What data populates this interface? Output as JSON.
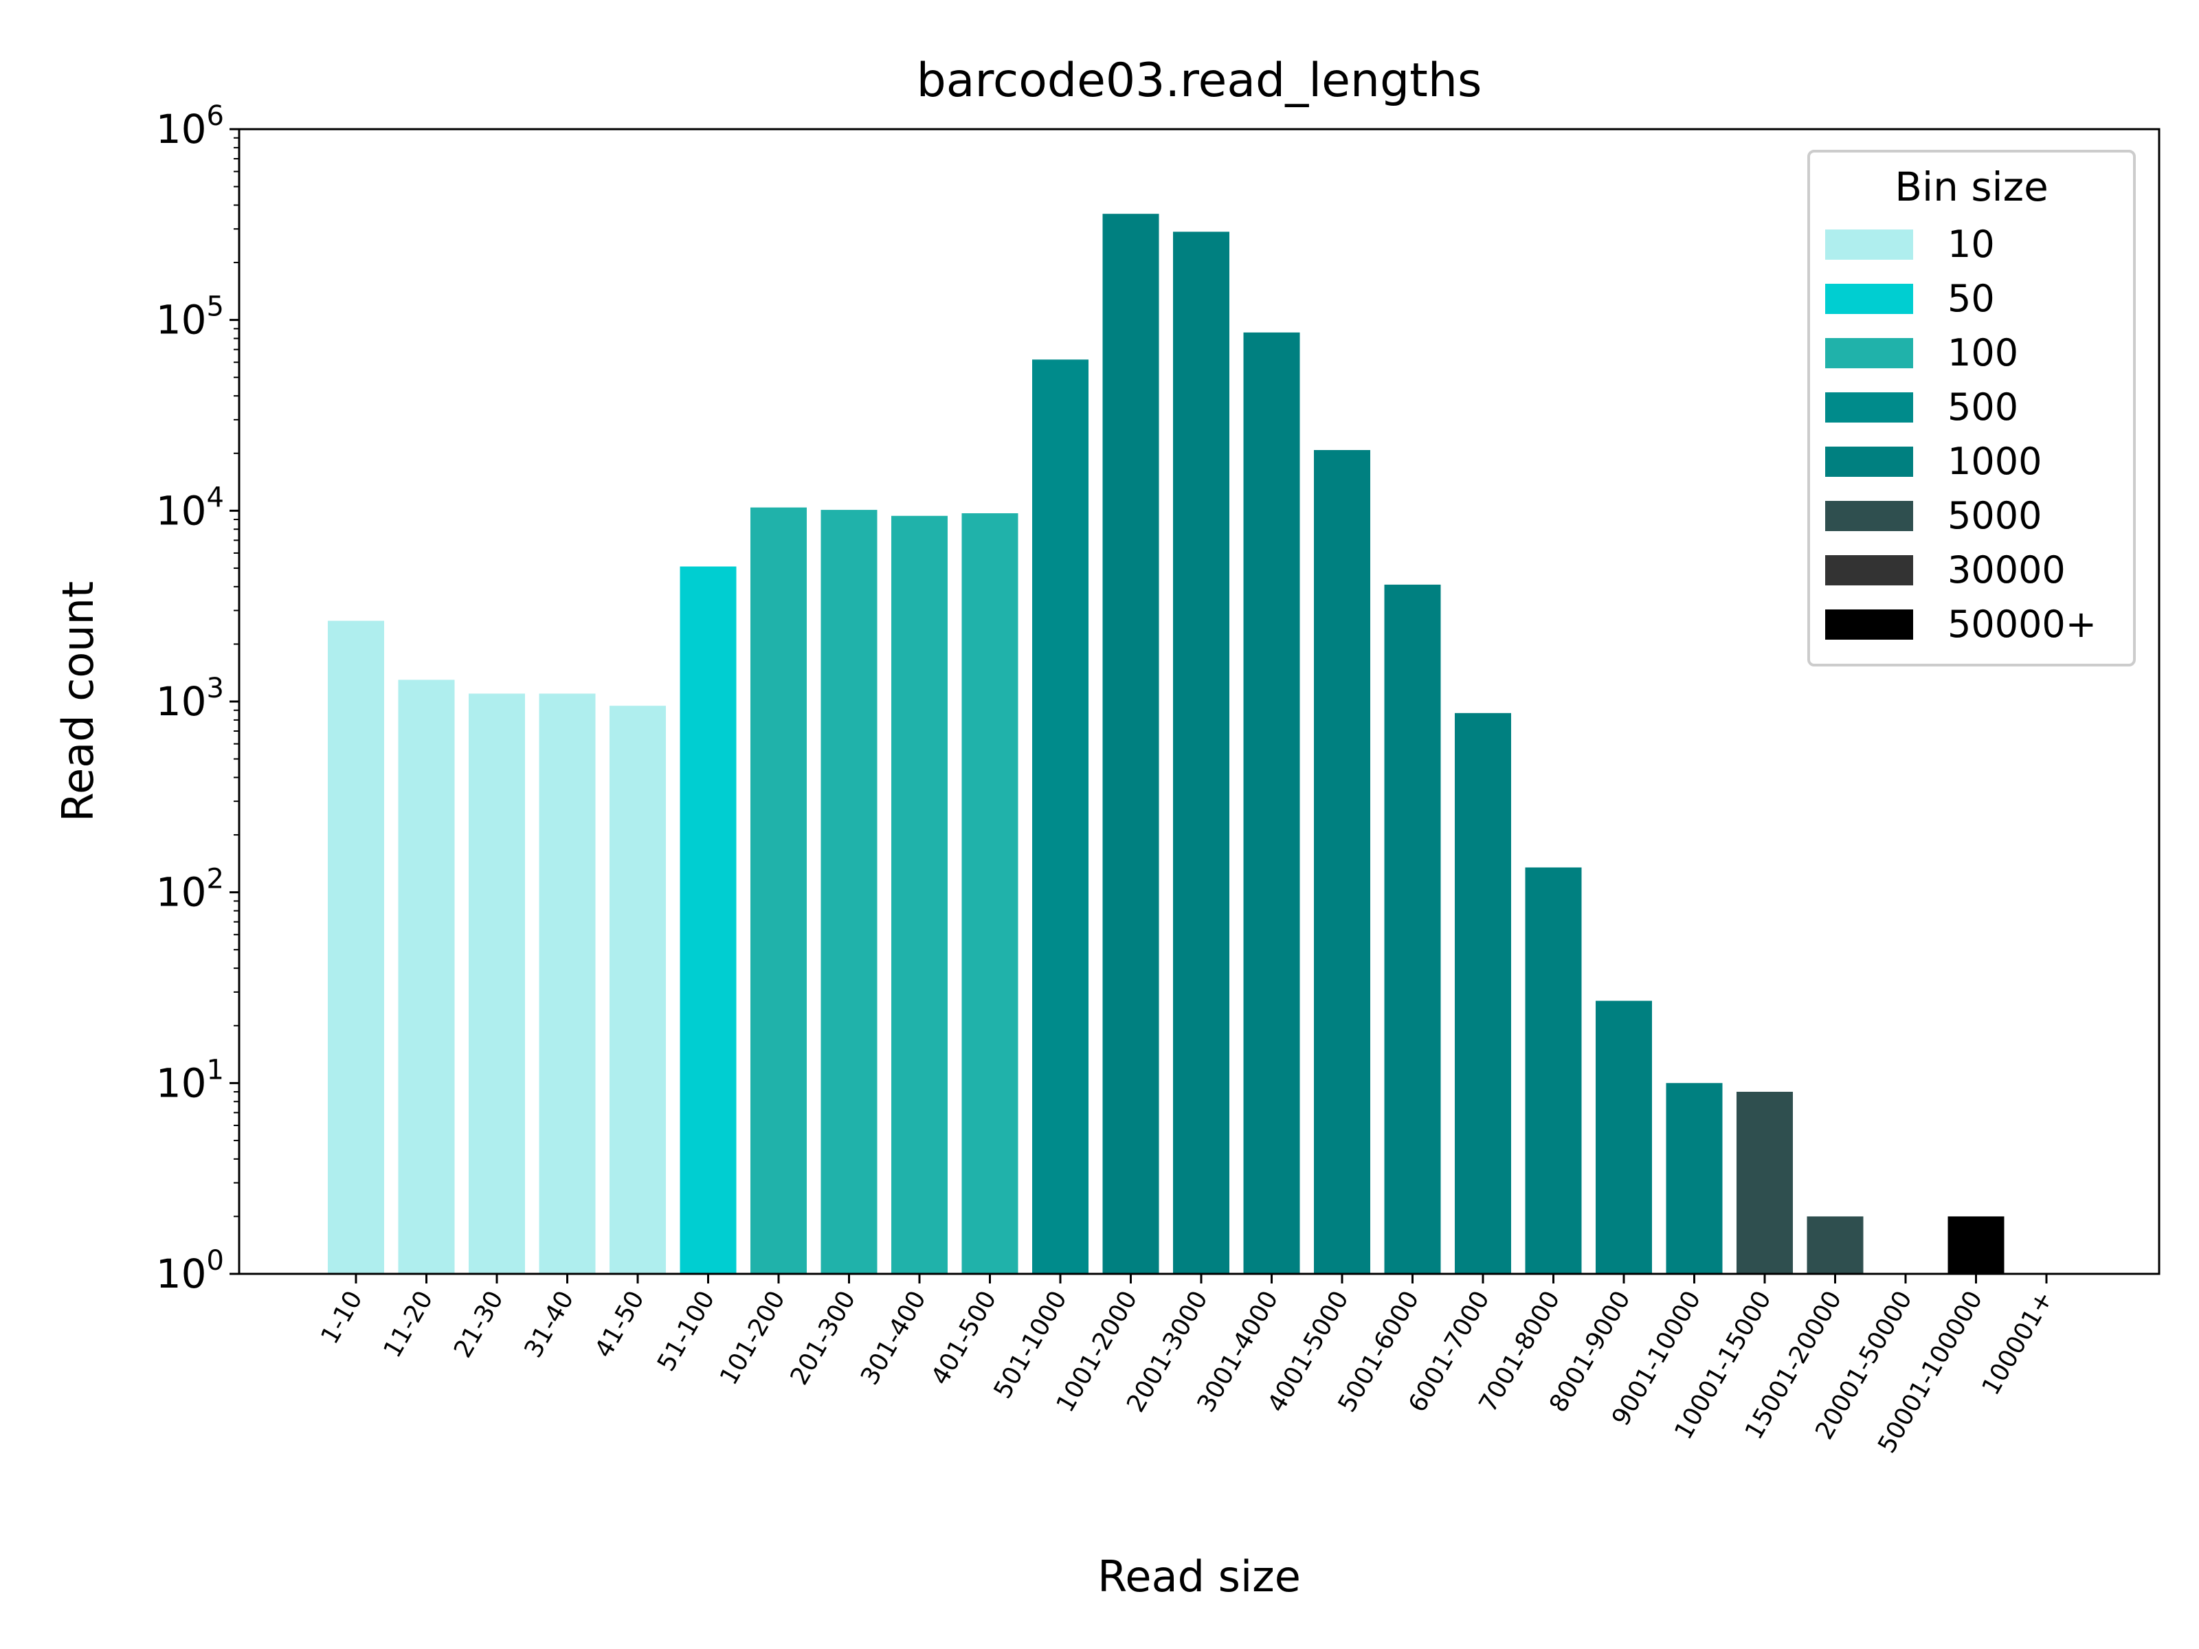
{
  "chart_data": {
    "type": "bar",
    "title": "barcode03.read_lengths",
    "xlabel": "Read size",
    "ylabel": "Read count",
    "yscale": "log",
    "ylim": [
      1,
      1000000
    ],
    "yticks": [
      {
        "base": "10",
        "exp": "0"
      },
      {
        "base": "10",
        "exp": "1"
      },
      {
        "base": "10",
        "exp": "2"
      },
      {
        "base": "10",
        "exp": "3"
      },
      {
        "base": "10",
        "exp": "4"
      },
      {
        "base": "10",
        "exp": "5"
      },
      {
        "base": "10",
        "exp": "6"
      }
    ],
    "categories": [
      "1-10",
      "11-20",
      "21-30",
      "31-40",
      "41-50",
      "51-100",
      "101-200",
      "201-300",
      "301-400",
      "401-500",
      "501-1000",
      "1001-2000",
      "2001-3000",
      "3001-4000",
      "4001-5000",
      "5001-6000",
      "6001-7000",
      "7001-8000",
      "8001-9000",
      "9001-10000",
      "10001-15000",
      "15001-20000",
      "20001-50000",
      "50001-100000",
      "100001+"
    ],
    "values": [
      2650,
      1300,
      1100,
      1100,
      950,
      5100,
      10400,
      10100,
      9400,
      9700,
      62000,
      360000,
      290000,
      86000,
      20800,
      4100,
      870,
      135,
      27,
      10,
      9,
      2,
      0,
      2,
      0
    ],
    "bin_size": [
      "10",
      "10",
      "10",
      "10",
      "10",
      "50",
      "100",
      "100",
      "100",
      "100",
      "500",
      "1000",
      "1000",
      "1000",
      "1000",
      "1000",
      "1000",
      "1000",
      "1000",
      "1000",
      "5000",
      "5000",
      "30000",
      "50000+",
      "50000+"
    ],
    "legend": {
      "title": "Bin size",
      "position": "top-right",
      "entries": [
        {
          "label": "10",
          "color": "#afeeee"
        },
        {
          "label": "50",
          "color": "#00ced1"
        },
        {
          "label": "100",
          "color": "#20b2aa"
        },
        {
          "label": "500",
          "color": "#008b8b"
        },
        {
          "label": "1000",
          "color": "#008080"
        },
        {
          "label": "5000",
          "color": "#2f4f4f"
        },
        {
          "label": "30000",
          "color": "#333333"
        },
        {
          "label": "50000+",
          "color": "#000000"
        }
      ]
    },
    "grid": false
  }
}
